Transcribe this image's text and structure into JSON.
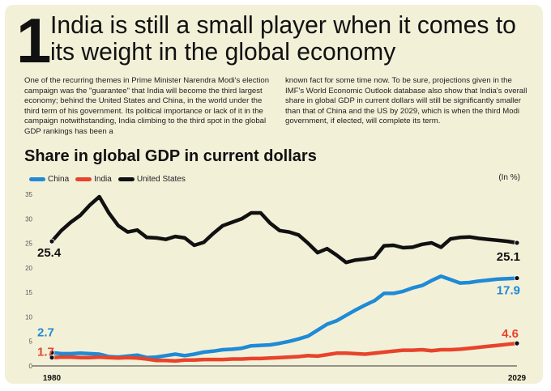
{
  "header": {
    "number": "1",
    "headline_line1": "India is still a small player when it comes to",
    "headline_line2": "its weight in the global economy"
  },
  "body": {
    "left": "One of the recurring themes in Prime Minister Narendra Modi's election campaign was the \"guarantee\" that India will become the third largest economy; behind the United States and China, in the world under the third term of his government. Its political importance or lack of it in the campaign notwithstanding, India climbing to the third spot in the global GDP rankings has been a",
    "right": "known fact for some time now. To be sure, projections given in the IMF's World Economic Outlook database also show that India's overall share in global GDP in current dollars will still be significantly smaller than that of China and the US by 2029, which is when the third Modi government, if elected, will complete its term."
  },
  "chart_data": {
    "type": "line",
    "title": "Share in global GDP in current dollars",
    "units_label": "(In %)",
    "ylim": [
      0,
      35
    ],
    "yticks": [
      0,
      5,
      10,
      15,
      20,
      25,
      30,
      35
    ],
    "x": [
      1980,
      1981,
      1982,
      1983,
      1984,
      1985,
      1986,
      1987,
      1988,
      1989,
      1990,
      1991,
      1992,
      1993,
      1994,
      1995,
      1996,
      1997,
      1998,
      1999,
      2000,
      2001,
      2002,
      2003,
      2004,
      2005,
      2006,
      2007,
      2008,
      2009,
      2010,
      2011,
      2012,
      2013,
      2014,
      2015,
      2016,
      2017,
      2018,
      2019,
      2020,
      2021,
      2022,
      2023,
      2024,
      2025,
      2026,
      2027,
      2028,
      2029
    ],
    "x_tick_labels": [
      "1980",
      "2029"
    ],
    "grid": false,
    "legend_position": "top-left",
    "series": [
      {
        "name": "China",
        "color": "#1f8ad6",
        "values": [
          2.7,
          2.5,
          2.5,
          2.6,
          2.5,
          2.4,
          1.9,
          1.8,
          2.0,
          2.2,
          1.7,
          1.8,
          2.1,
          2.4,
          2.1,
          2.4,
          2.8,
          3.0,
          3.3,
          3.4,
          3.6,
          4.1,
          4.2,
          4.3,
          4.6,
          5.0,
          5.5,
          6.1,
          7.3,
          8.5,
          9.2,
          10.3,
          11.4,
          12.4,
          13.3,
          14.8,
          14.8,
          15.2,
          15.9,
          16.4,
          17.4,
          18.3,
          17.6,
          16.9,
          17.0,
          17.3,
          17.5,
          17.7,
          17.8,
          17.9
        ],
        "start_label": "2.7",
        "end_label": "17.9"
      },
      {
        "name": "India",
        "color": "#e8432b",
        "values": [
          1.7,
          1.8,
          1.8,
          1.7,
          1.7,
          1.8,
          1.7,
          1.6,
          1.7,
          1.6,
          1.4,
          1.1,
          1.1,
          1.0,
          1.2,
          1.2,
          1.3,
          1.3,
          1.3,
          1.4,
          1.4,
          1.5,
          1.5,
          1.6,
          1.7,
          1.8,
          1.9,
          2.1,
          2.0,
          2.3,
          2.6,
          2.6,
          2.5,
          2.4,
          2.6,
          2.8,
          3.0,
          3.2,
          3.2,
          3.3,
          3.1,
          3.3,
          3.3,
          3.4,
          3.6,
          3.8,
          4.0,
          4.2,
          4.4,
          4.6
        ],
        "start_label": "1.7",
        "end_label": "4.6"
      },
      {
        "name": "United States",
        "color": "#111111",
        "values": [
          25.4,
          27.6,
          29.3,
          30.7,
          32.8,
          34.5,
          31.2,
          28.6,
          27.3,
          27.7,
          26.2,
          26.1,
          25.8,
          26.4,
          26.1,
          24.6,
          25.2,
          27.0,
          28.6,
          29.3,
          30.0,
          31.2,
          31.2,
          29.1,
          27.6,
          27.3,
          26.7,
          25.0,
          23.1,
          23.9,
          22.6,
          21.1,
          21.6,
          21.8,
          22.1,
          24.5,
          24.6,
          24.1,
          24.2,
          24.8,
          25.1,
          24.2,
          25.9,
          26.2,
          26.3,
          26.0,
          25.8,
          25.6,
          25.4,
          25.1
        ],
        "start_label": "25.4",
        "end_label": "25.1"
      }
    ]
  }
}
